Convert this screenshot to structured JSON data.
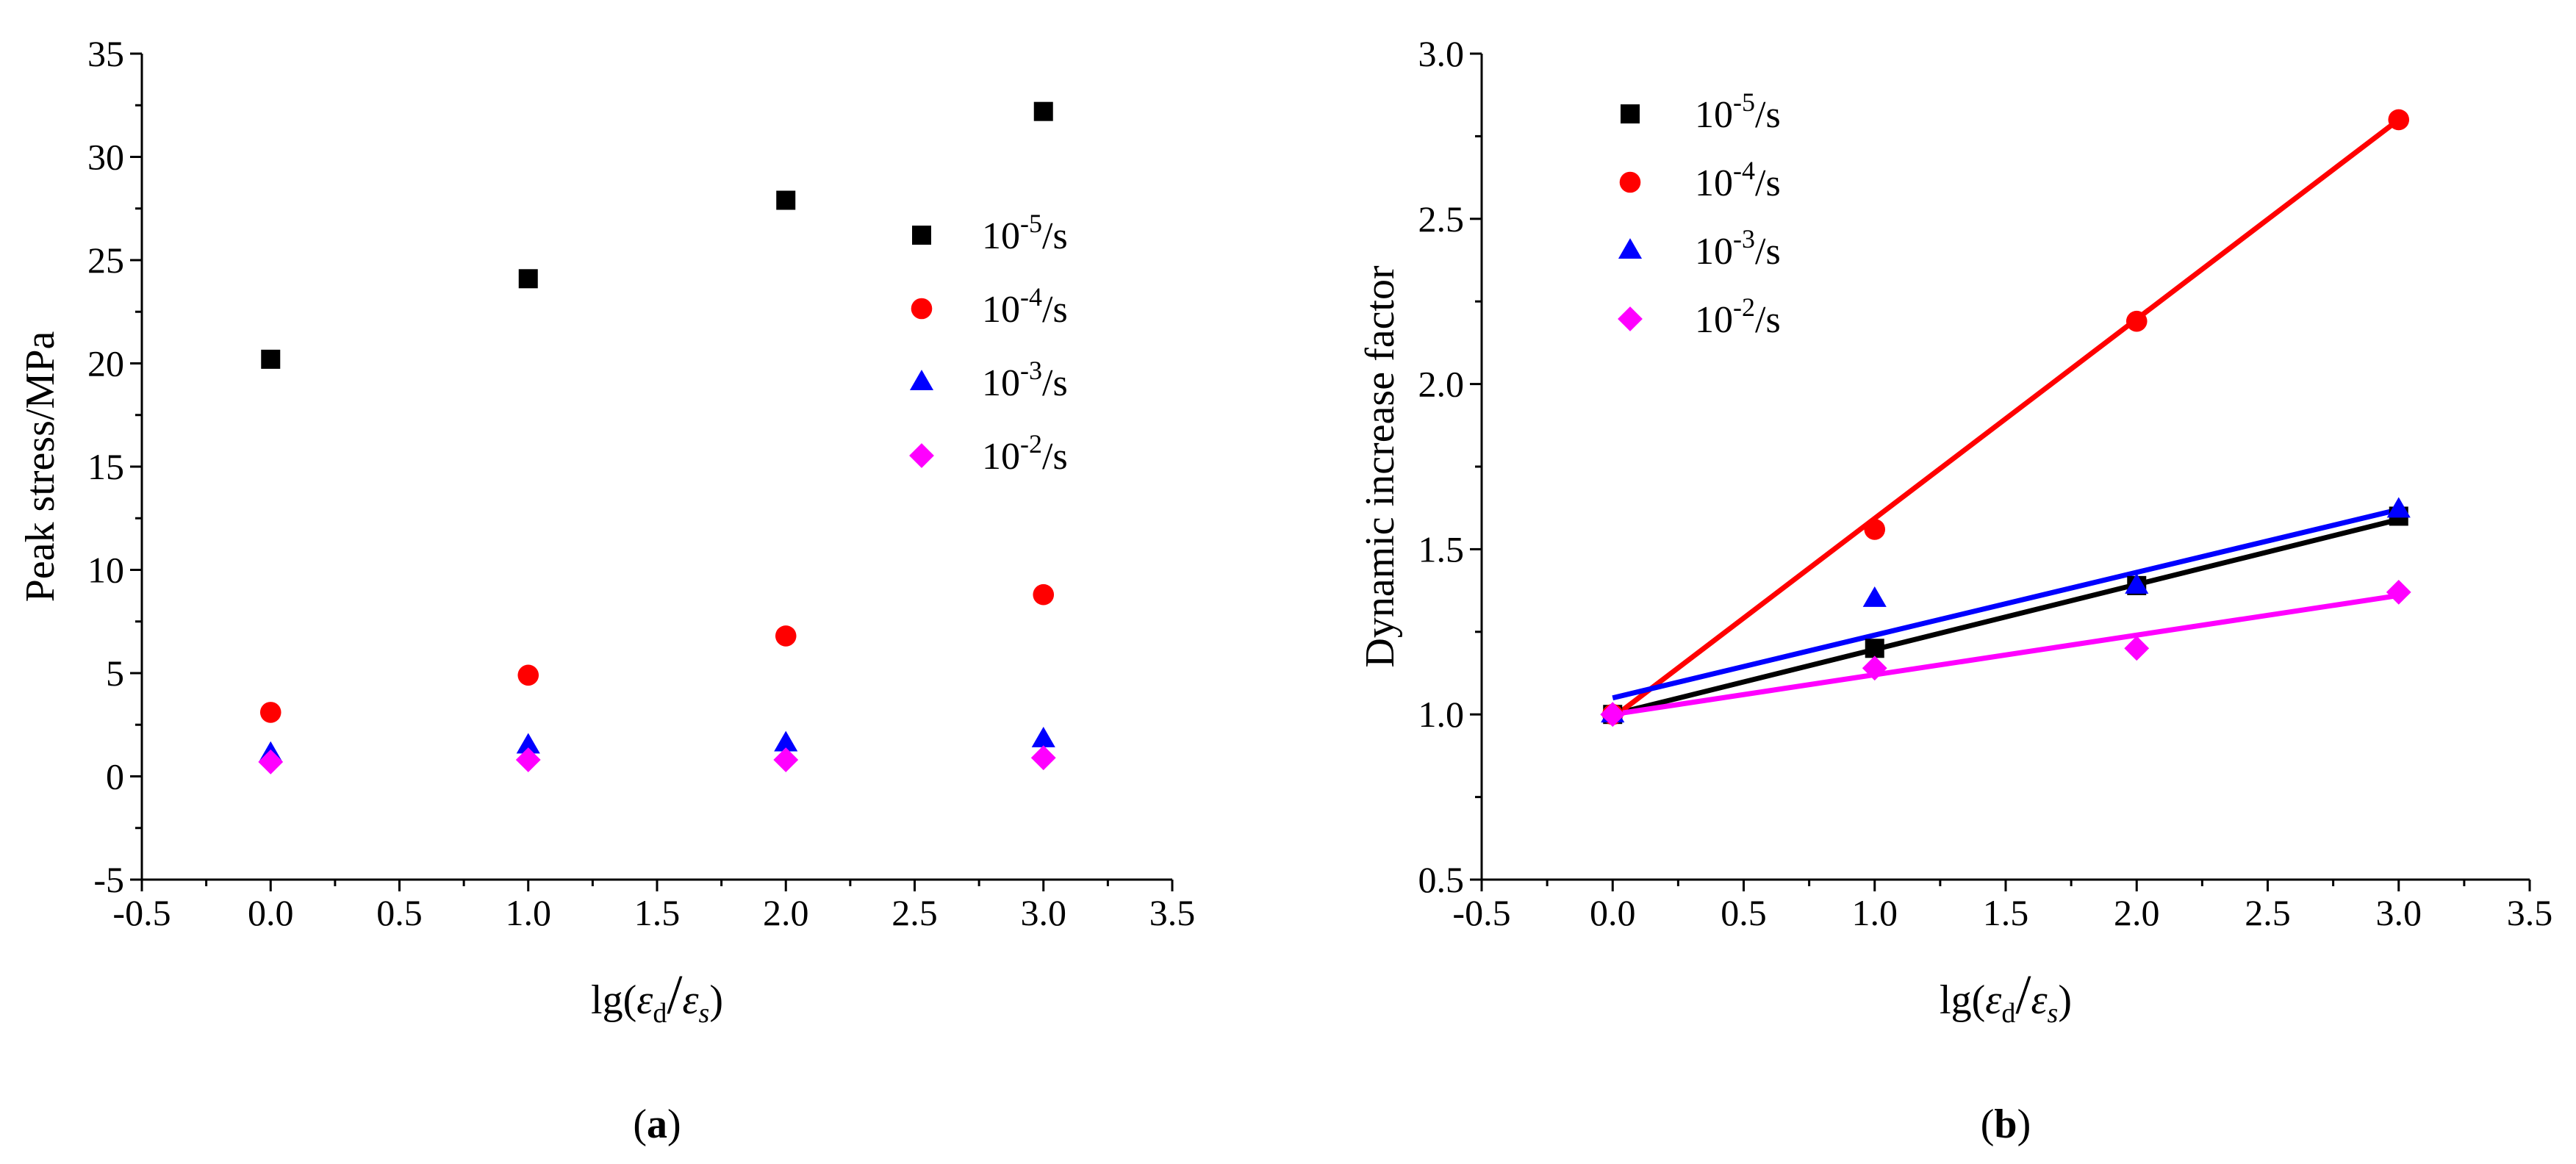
{
  "series_colors": [
    "#000000",
    "#ff0000",
    "#0000ff",
    "#ff00ff"
  ],
  "series_markers": [
    "square",
    "circle",
    "triangle",
    "diamond"
  ],
  "chart_data": [
    {
      "type": "scatter",
      "panel_label": "a",
      "xlabel": "lg(ε̇d/ε̇s)",
      "xlabel_parts": {
        "prefix": "lg(",
        "num": "ε",
        "num_sub": "d",
        "slash": "/",
        "den": "ε",
        "den_sub": "s",
        "suffix": ")"
      },
      "ylabel": "Peak stress/MPa",
      "xlim": [
        -0.5,
        3.5
      ],
      "ylim": [
        -5,
        35
      ],
      "xticks": [
        -0.5,
        0.0,
        0.5,
        1.0,
        1.5,
        2.0,
        2.5,
        3.0,
        3.5
      ],
      "xtick_labels": [
        "-0.5",
        "0.0",
        "0.5",
        "1.0",
        "1.5",
        "2.0",
        "2.5",
        "3.0",
        "3.5"
      ],
      "yticks": [
        -5,
        0,
        5,
        10,
        15,
        20,
        25,
        30,
        35
      ],
      "ytick_labels": [
        "-5",
        "0",
        "5",
        "10",
        "15",
        "20",
        "25",
        "30",
        "35"
      ],
      "x": [
        0.0,
        1.0,
        2.0,
        3.0
      ],
      "legend_position": "right-center",
      "series": [
        {
          "name": "10-5/s",
          "base": "10",
          "exp": "-5",
          "unit": "/s",
          "values": [
            20.2,
            24.1,
            27.9,
            32.2
          ]
        },
        {
          "name": "10-4/s",
          "base": "10",
          "exp": "-4",
          "unit": "/s",
          "values": [
            3.1,
            4.9,
            6.8,
            8.8
          ]
        },
        {
          "name": "10-3/s",
          "base": "10",
          "exp": "-3",
          "unit": "/s",
          "values": [
            1.1,
            1.5,
            1.6,
            1.8
          ]
        },
        {
          "name": "10-2/s",
          "base": "10",
          "exp": "-2",
          "unit": "/s",
          "values": [
            0.7,
            0.8,
            0.8,
            0.9
          ]
        }
      ]
    },
    {
      "type": "scatter",
      "panel_label": "b",
      "xlabel": "lg(ε̇d/ε̇s)",
      "xlabel_parts": {
        "prefix": "lg(",
        "num": "ε",
        "num_sub": "d",
        "slash": "/",
        "den": "ε",
        "den_sub": "s",
        "suffix": ")"
      },
      "ylabel": "Dynamic increase factor",
      "xlim": [
        -0.5,
        3.5
      ],
      "ylim": [
        0.5,
        3.0
      ],
      "xticks": [
        -0.5,
        0.0,
        0.5,
        1.0,
        1.5,
        2.0,
        2.5,
        3.0,
        3.5
      ],
      "xtick_labels": [
        "-0.5",
        "0.0",
        "0.5",
        "1.0",
        "1.5",
        "2.0",
        "2.5",
        "3.0",
        "3.5"
      ],
      "yticks": [
        0.5,
        1.0,
        1.5,
        2.0,
        2.5,
        3.0
      ],
      "ytick_labels": [
        "0.5",
        "1.0",
        "1.5",
        "2.0",
        "2.5",
        "3.0"
      ],
      "x": [
        0.0,
        1.0,
        2.0,
        3.0
      ],
      "legend_position": "top-left",
      "series": [
        {
          "name": "10-5/s",
          "base": "10",
          "exp": "-5",
          "unit": "/s",
          "values": [
            1.0,
            1.2,
            1.39,
            1.6
          ],
          "fit": [
            [
              0.0,
              1.0
            ],
            [
              3.0,
              1.59
            ]
          ]
        },
        {
          "name": "10-4/s",
          "base": "10",
          "exp": "-4",
          "unit": "/s",
          "values": [
            1.0,
            1.56,
            2.19,
            2.8
          ],
          "fit": [
            [
              0.0,
              0.99
            ],
            [
              3.0,
              2.8
            ]
          ]
        },
        {
          "name": "10-3/s",
          "base": "10",
          "exp": "-3",
          "unit": "/s",
          "values": [
            1.0,
            1.35,
            1.39,
            1.62
          ],
          "fit": [
            [
              0.0,
              1.05
            ],
            [
              3.0,
              1.62
            ]
          ]
        },
        {
          "name": "10-2/s",
          "base": "10",
          "exp": "-2",
          "unit": "/s",
          "values": [
            1.0,
            1.14,
            1.2,
            1.37
          ],
          "fit": [
            [
              0.0,
              1.0
            ],
            [
              3.0,
              1.36
            ]
          ]
        }
      ]
    }
  ]
}
